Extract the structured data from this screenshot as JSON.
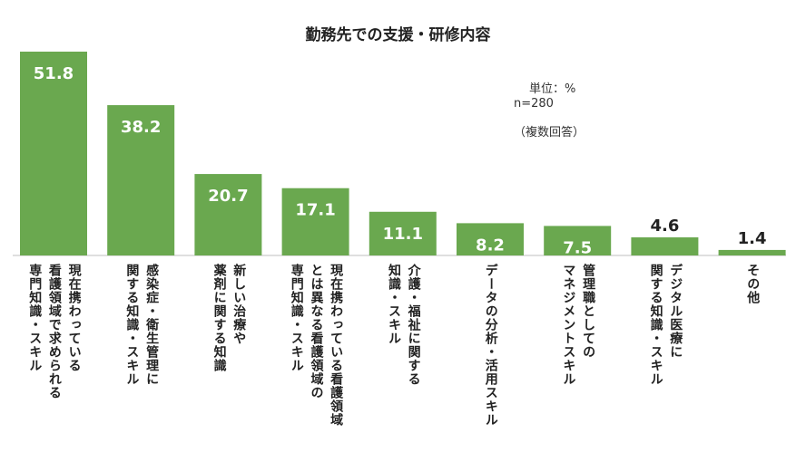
{
  "chart_data": {
    "type": "bar",
    "title": "勤務先での支援・研修内容",
    "unit_label": "単位：%",
    "n_label": "n=280",
    "multi_label": "（複数回答）",
    "categories": [
      "現在携わっている\n看護領域で求められる\n専門知識・スキル",
      "感染症・衛生管理に\n関する知識・スキル",
      "新しい治療や\n薬剤に関する知識",
      "現在携わっている看護領域\nとは異なる看護領域の\n専門知識・スキル",
      "介護・福祉に関する\n知識・スキル",
      "データの分析・活用スキル",
      "管理職としての\nマネジメントスキル",
      "デジタル医療に\n関する知識・スキル",
      "その他"
    ],
    "values": [
      51.8,
      38.2,
      20.7,
      17.1,
      11.1,
      8.2,
      7.5,
      4.6,
      1.4
    ],
    "value_labels": [
      "51.8",
      "38.2",
      "20.7",
      "17.1",
      "11.1",
      "8.2",
      "7.5",
      "4.6",
      "1.4"
    ],
    "ylim": [
      0,
      51.8
    ],
    "bar_color": "#6aa84f",
    "xlabel": "",
    "ylabel": ""
  }
}
